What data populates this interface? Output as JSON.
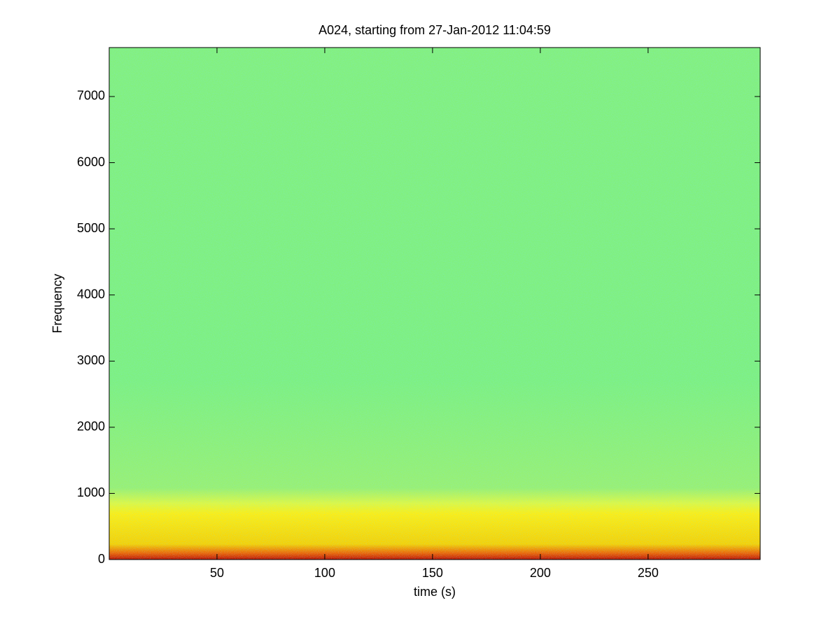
{
  "chart_data": {
    "type": "spectrogram",
    "title": "A024, starting from 27-Jan-2012 11:04:59",
    "x_label": "time (s)",
    "y_label": "Frequency",
    "xlim": [
      0,
      302
    ],
    "xticks": [
      50,
      100,
      150,
      200,
      250
    ],
    "ylim": [
      0,
      7740
    ],
    "yticks": [
      0,
      1000,
      2000,
      3000,
      4000,
      5000,
      6000,
      7000
    ],
    "colormap": "jet"
  }
}
